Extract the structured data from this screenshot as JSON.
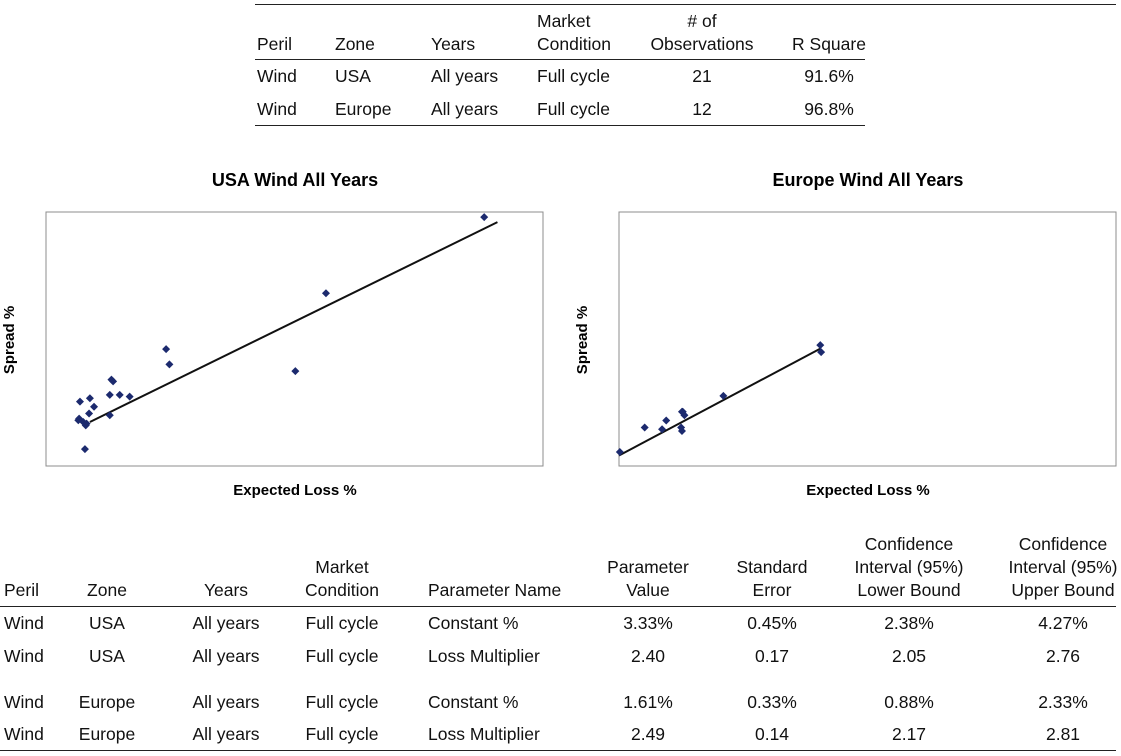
{
  "table1": {
    "header": [
      "Peril",
      "Zone",
      "Years",
      "Market\nCondition",
      "# of\nObservations",
      "R Square"
    ],
    "rows": [
      [
        "Wind",
        "USA",
        "All years",
        "Full cycle",
        21,
        "91.6%"
      ],
      [
        "Wind",
        "Europe",
        "All years",
        "Full cycle",
        12,
        "96.8%"
      ]
    ]
  },
  "chart_data": [
    {
      "type": "scatter",
      "title": "USA Wind All Years",
      "x_label": "Expected Loss %",
      "y_label": "Spread %",
      "color": "#1c2a6e",
      "xlim": [
        0,
        6
      ],
      "ylim": [
        2,
        17
      ],
      "x": [
        5.29,
        3.38,
        1.45,
        1.49,
        3.01,
        0.79,
        0.81,
        0.77,
        0.89,
        1.01,
        0.53,
        0.41,
        0.58,
        0.52,
        0.77,
        0.39,
        0.45,
        0.48,
        0.49,
        0.4,
        0.47
      ],
      "values": [
        16.7,
        12.2,
        8.9,
        8.0,
        7.6,
        7.1,
        7.0,
        6.2,
        6.2,
        6.1,
        6.0,
        5.8,
        5.5,
        5.1,
        5.0,
        4.7,
        4.6,
        4.4,
        4.5,
        4.8,
        3.0
      ],
      "trendline": {
        "x": [
          0.53,
          5.45
        ],
        "values": [
          4.6,
          16.4
        ]
      }
    },
    {
      "type": "scatter",
      "title": "Europe Wind All Years",
      "x_label": "Expected Loss %",
      "y_label": "Spread %",
      "color": "#1c2a6e",
      "xlim": [
        0,
        6
      ],
      "ylim": [
        1,
        15.5
      ],
      "x": [
        0.01,
        0.31,
        0.52,
        0.57,
        0.75,
        0.76,
        0.77,
        0.79,
        1.26,
        2.43,
        2.44,
        0.76
      ],
      "values": [
        1.8,
        3.2,
        3.1,
        3.6,
        3.2,
        3.0,
        4.1,
        3.9,
        5.0,
        7.9,
        7.5,
        4.1
      ],
      "trendline": {
        "x": [
          0.0,
          2.43
        ],
        "values": [
          1.6,
          7.7
        ]
      }
    }
  ],
  "table2": {
    "header": [
      "Peril",
      "Zone",
      "Years",
      "Market\nCondition",
      "Parameter Name",
      "Parameter\nValue",
      "Standard\nError",
      "Confidence\nInterval (95%)\nLower Bound",
      "Confidence\nInterval (95%)\nUpper Bound"
    ],
    "rows": [
      [
        "Wind",
        "USA",
        "All years",
        "Full cycle",
        "Constant %",
        "3.33%",
        "0.45%",
        "2.38%",
        "4.27%"
      ],
      [
        "Wind",
        "USA",
        "All years",
        "Full cycle",
        "Loss Multiplier",
        "2.40",
        "0.17",
        "2.05",
        "2.76"
      ],
      [
        "Wind",
        "Europe",
        "All years",
        "Full cycle",
        "Constant %",
        "1.61%",
        "0.33%",
        "0.88%",
        "2.33%"
      ],
      [
        "Wind",
        "Europe",
        "All years",
        "Full cycle",
        "Loss Multiplier",
        "2.49",
        "0.14",
        "2.17",
        "2.81"
      ]
    ]
  }
}
